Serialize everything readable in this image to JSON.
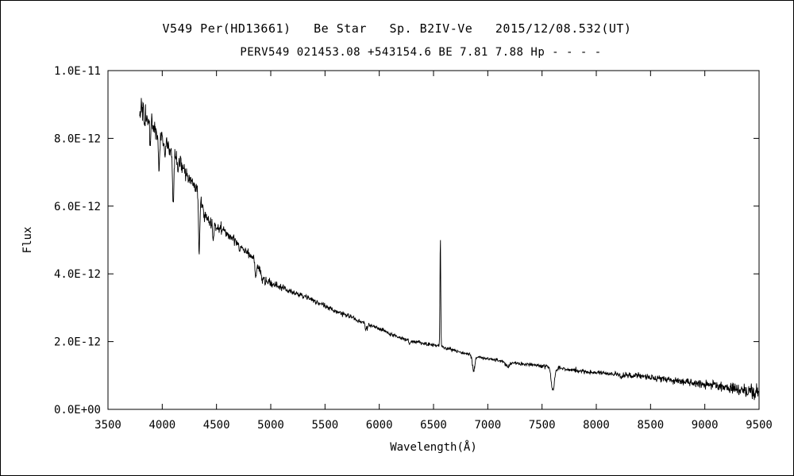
{
  "chart_data": {
    "type": "line",
    "title": "V549 Per(HD13661)   Be Star   Sp. B2IV-Ve   2015/12/08.532(UT)",
    "subtitle": "PERV549 021453.08 +543154.6 BE 7.81 7.88 Hp - - - -",
    "xlabel": "Wavelength(Å)",
    "ylabel": "Flux",
    "xlim": [
      3500,
      9500
    ],
    "ylim": [
      0,
      1e-11
    ],
    "grid": false,
    "legend": false,
    "xticks": [
      3500,
      4000,
      4500,
      5000,
      5500,
      6000,
      6500,
      7000,
      7500,
      8000,
      8500,
      9000,
      9500
    ],
    "yticks": [
      {
        "value": 0.0,
        "label": "0.0E+00"
      },
      {
        "value": 2e-12,
        "label": "2.0E-12"
      },
      {
        "value": 4e-12,
        "label": "4.0E-12"
      },
      {
        "value": 6e-12,
        "label": "6.0E-12"
      },
      {
        "value": 8e-12,
        "label": "8.0E-12"
      },
      {
        "value": 1e-11,
        "label": "1.0E-11"
      }
    ],
    "line_color": "#000000",
    "series": [
      {
        "name": "spectrum",
        "range": [
          3792,
          9500
        ],
        "sample_step": 3,
        "seed": 42,
        "flux_unit": "1e-12",
        "continuum_anchors_e12": [
          [
            3792,
            8.8
          ],
          [
            3810,
            9.05
          ],
          [
            3830,
            8.95
          ],
          [
            3850,
            8.65
          ],
          [
            3880,
            8.5
          ],
          [
            3910,
            8.45
          ],
          [
            3940,
            8.25
          ],
          [
            3970,
            8.05
          ],
          [
            4000,
            7.95
          ],
          [
            4040,
            7.85
          ],
          [
            4080,
            7.6
          ],
          [
            4120,
            7.45
          ],
          [
            4160,
            7.3
          ],
          [
            4200,
            7.05
          ],
          [
            4240,
            6.85
          ],
          [
            4280,
            6.65
          ],
          [
            4320,
            6.45
          ],
          [
            4360,
            6.1
          ],
          [
            4400,
            5.7
          ],
          [
            4440,
            5.5
          ],
          [
            4480,
            5.45
          ],
          [
            4520,
            5.4
          ],
          [
            4560,
            5.3
          ],
          [
            4600,
            5.15
          ],
          [
            4650,
            5.05
          ],
          [
            4700,
            4.9
          ],
          [
            4750,
            4.75
          ],
          [
            4800,
            4.6
          ],
          [
            4860,
            4.4
          ],
          [
            4900,
            4.1
          ],
          [
            4930,
            3.85
          ],
          [
            4960,
            3.75
          ],
          [
            5000,
            3.72
          ],
          [
            5050,
            3.68
          ],
          [
            5100,
            3.6
          ],
          [
            5200,
            3.45
          ],
          [
            5300,
            3.35
          ],
          [
            5400,
            3.2
          ],
          [
            5500,
            3.05
          ],
          [
            5600,
            2.9
          ],
          [
            5700,
            2.78
          ],
          [
            5800,
            2.62
          ],
          [
            5900,
            2.5
          ],
          [
            6000,
            2.38
          ],
          [
            6100,
            2.22
          ],
          [
            6200,
            2.1
          ],
          [
            6300,
            2.02
          ],
          [
            6400,
            1.95
          ],
          [
            6500,
            1.9
          ],
          [
            6563,
            1.86
          ],
          [
            6650,
            1.78
          ],
          [
            6750,
            1.68
          ],
          [
            6850,
            1.6
          ],
          [
            6950,
            1.52
          ],
          [
            7050,
            1.47
          ],
          [
            7150,
            1.42
          ],
          [
            7250,
            1.37
          ],
          [
            7350,
            1.33
          ],
          [
            7450,
            1.3
          ],
          [
            7550,
            1.27
          ],
          [
            7650,
            1.22
          ],
          [
            7750,
            1.17
          ],
          [
            7850,
            1.13
          ],
          [
            7950,
            1.1
          ],
          [
            8050,
            1.08
          ],
          [
            8150,
            1.05
          ],
          [
            8250,
            1.02
          ],
          [
            8350,
            0.99
          ],
          [
            8450,
            0.96
          ],
          [
            8550,
            0.93
          ],
          [
            8650,
            0.89
          ],
          [
            8750,
            0.84
          ],
          [
            8850,
            0.8
          ],
          [
            8950,
            0.77
          ],
          [
            9050,
            0.72
          ],
          [
            9150,
            0.67
          ],
          [
            9250,
            0.62
          ],
          [
            9350,
            0.57
          ],
          [
            9450,
            0.52
          ],
          [
            9500,
            0.48
          ]
        ],
        "absorption_lines": [
          {
            "center": 3835,
            "depth_e12": 0.65,
            "sigma": 5
          },
          {
            "center": 3889,
            "depth_e12": 0.7,
            "sigma": 5
          },
          {
            "center": 3970,
            "depth_e12": 1.0,
            "sigma": 6
          },
          {
            "center": 4026,
            "depth_e12": 0.35,
            "sigma": 4
          },
          {
            "center": 4101,
            "depth_e12": 1.5,
            "sigma": 6
          },
          {
            "center": 4144,
            "depth_e12": 0.25,
            "sigma": 4
          },
          {
            "center": 4340,
            "depth_e12": 1.55,
            "sigma": 6
          },
          {
            "center": 4387,
            "depth_e12": 0.25,
            "sigma": 4
          },
          {
            "center": 4471,
            "depth_e12": 0.5,
            "sigma": 5
          },
          {
            "center": 4713,
            "depth_e12": 0.2,
            "sigma": 4
          },
          {
            "center": 4861,
            "depth_e12": 0.55,
            "sigma": 6
          },
          {
            "center": 4922,
            "depth_e12": 0.18,
            "sigma": 4
          },
          {
            "center": 5015,
            "depth_e12": 0.12,
            "sigma": 4
          },
          {
            "center": 5876,
            "depth_e12": 0.2,
            "sigma": 5
          },
          {
            "center": 5890,
            "depth_e12": 0.15,
            "sigma": 4
          },
          {
            "center": 6280,
            "depth_e12": 0.12,
            "sigma": 6
          },
          {
            "center": 6870,
            "depth_e12": 0.45,
            "sigma": 11
          },
          {
            "center": 7180,
            "depth_e12": 0.14,
            "sigma": 20
          },
          {
            "center": 7600,
            "depth_e12": 0.7,
            "sigma": 15
          },
          {
            "center": 8230,
            "depth_e12": 0.08,
            "sigma": 14
          }
        ],
        "emission_lines": [
          {
            "center": 6563,
            "amplitude_e12": 3.25,
            "sigma": 3.5,
            "name": "H-alpha"
          }
        ],
        "noise_sigma_anchors_e12": [
          [
            3792,
            0.15
          ],
          [
            4000,
            0.13
          ],
          [
            4200,
            0.11
          ],
          [
            4500,
            0.08
          ],
          [
            4800,
            0.06
          ],
          [
            5200,
            0.045
          ],
          [
            5600,
            0.035
          ],
          [
            6000,
            0.03
          ],
          [
            6563,
            0.025
          ],
          [
            7000,
            0.025
          ],
          [
            7600,
            0.03
          ],
          [
            8000,
            0.035
          ],
          [
            8400,
            0.045
          ],
          [
            8800,
            0.055
          ],
          [
            9100,
            0.07
          ],
          [
            9300,
            0.09
          ],
          [
            9500,
            0.12
          ]
        ]
      }
    ]
  }
}
